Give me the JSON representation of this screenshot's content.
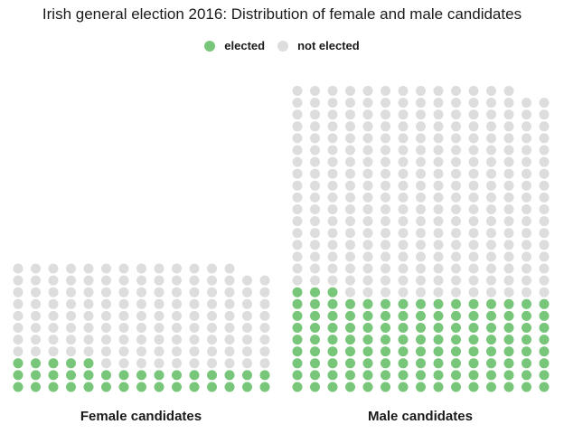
{
  "chart_data": {
    "type": "waffle",
    "title": "Irish general election 2016: Distribution of female and male candidates",
    "legend": {
      "position": "top",
      "items": [
        {
          "name": "elected",
          "color": "#78c679"
        },
        {
          "name": "not elected",
          "color": "#dddddd"
        }
      ]
    },
    "panels": [
      {
        "label": "Female candidates",
        "elected": 35,
        "not_elected": 128,
        "total": 163
      },
      {
        "label": "Male candidates",
        "elected": 123,
        "not_elected": 265,
        "total": 388
      }
    ],
    "columns_per_panel": 15,
    "fill_order": "bottom-up, left to right"
  }
}
